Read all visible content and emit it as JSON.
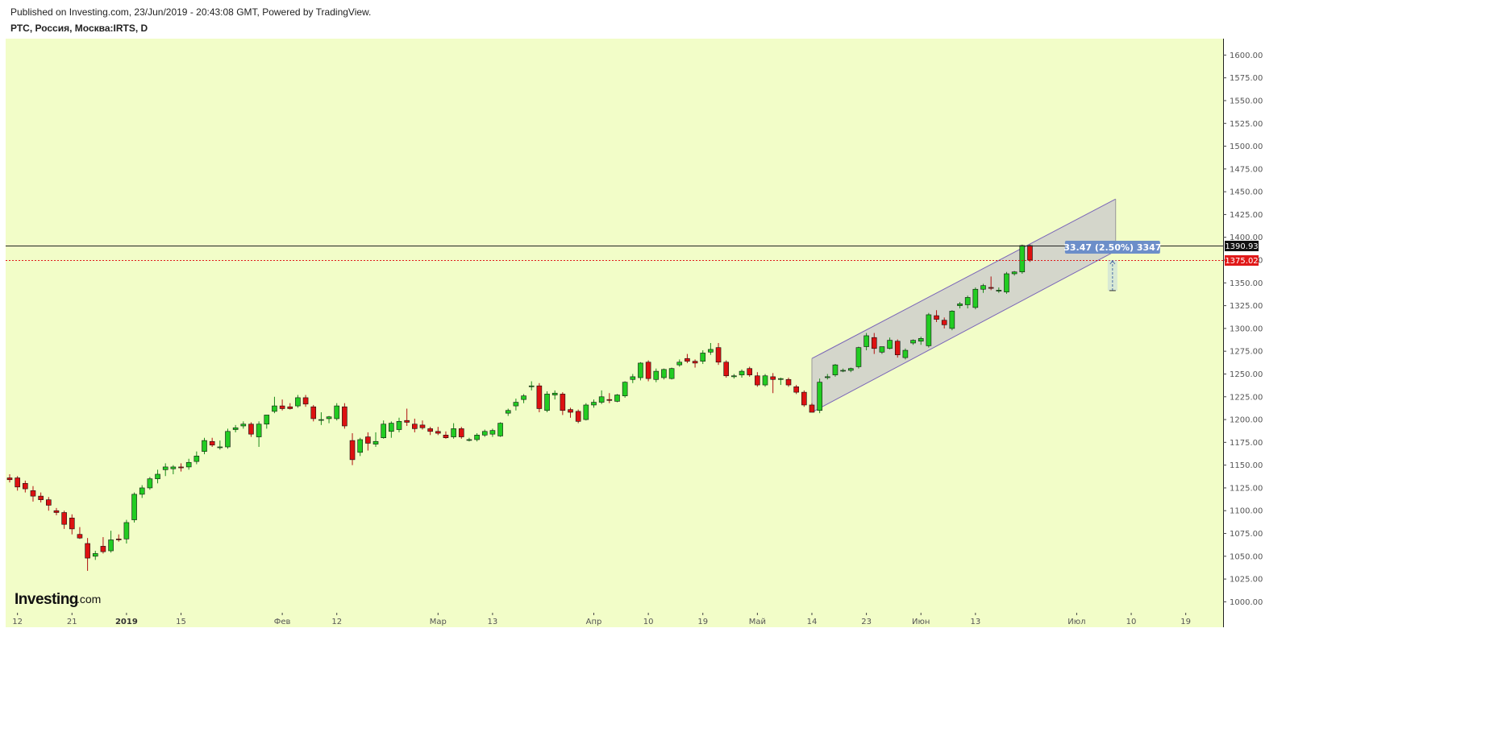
{
  "header": {
    "published": "Published on Investing.com, 23/Jun/2019 - 20:43:08 GMT, Powered by TradingView.",
    "symbol": "РТС, Россия, Москва:IRTS, D"
  },
  "logo": {
    "main": "Investing",
    "suffix": ".com"
  },
  "colors": {
    "plot_bg": "#f2fdc8",
    "up": "#22cc22",
    "down": "#dd1111",
    "channel_fill": "#cccccc",
    "channel_line": "#7a66b8",
    "measure_label": "#6c8ec9",
    "current_price_tag": "#e01919",
    "crosshair_tag": "#111111"
  },
  "chart_data": {
    "type": "candlestick",
    "title": "РТС, Россия, Москва:IRTS, D",
    "ylim": [
      988,
      1618
    ],
    "y_ticks": [
      "1600.00",
      "1575.00",
      "1550.00",
      "1525.00",
      "1500.00",
      "1475.00",
      "1450.00",
      "1425.00",
      "1400.00",
      "1375.00",
      "1350.00",
      "1325.00",
      "1300.00",
      "1275.00",
      "1250.00",
      "1225.00",
      "1200.00",
      "1175.00",
      "1150.00",
      "1125.00",
      "1100.00",
      "1075.00",
      "1050.00",
      "1025.00",
      "1000.00"
    ],
    "x_ticks": [
      {
        "label": "12",
        "bar": 1
      },
      {
        "label": "21",
        "bar": 8
      },
      {
        "label": "2019",
        "bar": 15,
        "bold": true
      },
      {
        "label": "15",
        "bar": 22
      },
      {
        "label": "Фев",
        "bar": 35
      },
      {
        "label": "12",
        "bar": 42
      },
      {
        "label": "Мар",
        "bar": 55
      },
      {
        "label": "13",
        "bar": 62
      },
      {
        "label": "Апр",
        "bar": 75
      },
      {
        "label": "10",
        "bar": 82
      },
      {
        "label": "19",
        "bar": 89
      },
      {
        "label": "Май",
        "bar": 96
      },
      {
        "label": "14",
        "bar": 103
      },
      {
        "label": "23",
        "bar": 110
      },
      {
        "label": "Июн",
        "bar": 117
      },
      {
        "label": "13",
        "bar": 124
      },
      {
        "label": "Июл",
        "bar": 137
      },
      {
        "label": "10",
        "bar": 144
      },
      {
        "label": "19",
        "bar": 151
      }
    ],
    "candles": [
      [
        1136,
        1140,
        1131,
        1134
      ],
      [
        1136,
        1138,
        1122,
        1126
      ],
      [
        1130,
        1133,
        1120,
        1124
      ],
      [
        1122,
        1127,
        1110,
        1116
      ],
      [
        1116,
        1120,
        1109,
        1112
      ],
      [
        1112,
        1115,
        1100,
        1106
      ],
      [
        1100,
        1103,
        1095,
        1098
      ],
      [
        1098,
        1100,
        1080,
        1085
      ],
      [
        1092,
        1096,
        1074,
        1080
      ],
      [
        1074,
        1082,
        1069,
        1070
      ],
      [
        1064,
        1070,
        1034,
        1048
      ],
      [
        1050,
        1056,
        1046,
        1053
      ],
      [
        1061,
        1071,
        1053,
        1055
      ],
      [
        1056,
        1078,
        1054,
        1068
      ],
      [
        1069,
        1074,
        1066,
        1068
      ],
      [
        1069,
        1090,
        1064,
        1087
      ],
      [
        1090,
        1120,
        1087,
        1118
      ],
      [
        1118,
        1128,
        1114,
        1125
      ],
      [
        1125,
        1137,
        1123,
        1135
      ],
      [
        1135,
        1145,
        1130,
        1140
      ],
      [
        1145,
        1152,
        1138,
        1148
      ],
      [
        1146,
        1150,
        1140,
        1148
      ],
      [
        1148,
        1152,
        1143,
        1147
      ],
      [
        1148,
        1157,
        1145,
        1153
      ],
      [
        1154,
        1165,
        1151,
        1160
      ],
      [
        1165,
        1180,
        1162,
        1177
      ],
      [
        1176,
        1180,
        1170,
        1172
      ],
      [
        1170,
        1177,
        1167,
        1170
      ],
      [
        1170,
        1190,
        1168,
        1187
      ],
      [
        1189,
        1194,
        1186,
        1191
      ],
      [
        1193,
        1198,
        1190,
        1195
      ],
      [
        1195,
        1197,
        1181,
        1184
      ],
      [
        1181,
        1198,
        1170,
        1195
      ],
      [
        1195,
        1205,
        1190,
        1205
      ],
      [
        1209,
        1225,
        1207,
        1215
      ],
      [
        1215,
        1222,
        1210,
        1212
      ],
      [
        1214,
        1218,
        1211,
        1212
      ],
      [
        1215,
        1227,
        1213,
        1224
      ],
      [
        1224,
        1227,
        1214,
        1217
      ],
      [
        1214,
        1216,
        1198,
        1201
      ],
      [
        1200,
        1208,
        1194,
        1200
      ],
      [
        1201,
        1204,
        1196,
        1203
      ],
      [
        1201,
        1218,
        1199,
        1215
      ],
      [
        1214,
        1218,
        1190,
        1193
      ],
      [
        1177,
        1185,
        1150,
        1156
      ],
      [
        1164,
        1180,
        1160,
        1178
      ],
      [
        1181,
        1186,
        1166,
        1174
      ],
      [
        1173,
        1186,
        1170,
        1176
      ],
      [
        1180,
        1199,
        1179,
        1195
      ],
      [
        1187,
        1198,
        1180,
        1196
      ],
      [
        1189,
        1202,
        1186,
        1198
      ],
      [
        1199,
        1212,
        1193,
        1197
      ],
      [
        1195,
        1201,
        1186,
        1190
      ],
      [
        1194,
        1199,
        1189,
        1191
      ],
      [
        1190,
        1192,
        1183,
        1187
      ],
      [
        1187,
        1192,
        1183,
        1185
      ],
      [
        1183,
        1187,
        1179,
        1180
      ],
      [
        1181,
        1196,
        1179,
        1190
      ],
      [
        1190,
        1192,
        1179,
        1181
      ],
      [
        1178,
        1180,
        1176,
        1178
      ],
      [
        1178,
        1185,
        1176,
        1183
      ],
      [
        1183,
        1189,
        1181,
        1187
      ],
      [
        1184,
        1190,
        1181,
        1188
      ],
      [
        1182,
        1197,
        1181,
        1196
      ],
      [
        1207,
        1212,
        1204,
        1210
      ],
      [
        1215,
        1223,
        1210,
        1219
      ],
      [
        1222,
        1228,
        1218,
        1226
      ],
      [
        1236,
        1242,
        1232,
        1237
      ],
      [
        1237,
        1240,
        1208,
        1212
      ],
      [
        1210,
        1231,
        1208,
        1228
      ],
      [
        1227,
        1232,
        1222,
        1229
      ],
      [
        1228,
        1230,
        1205,
        1210
      ],
      [
        1211,
        1213,
        1202,
        1208
      ],
      [
        1209,
        1211,
        1196,
        1198
      ],
      [
        1200,
        1218,
        1199,
        1216
      ],
      [
        1216,
        1222,
        1213,
        1219
      ],
      [
        1219,
        1232,
        1217,
        1225
      ],
      [
        1222,
        1229,
        1218,
        1221
      ],
      [
        1220,
        1228,
        1219,
        1227
      ],
      [
        1226,
        1242,
        1224,
        1241
      ],
      [
        1244,
        1250,
        1240,
        1247
      ],
      [
        1246,
        1263,
        1243,
        1262
      ],
      [
        1263,
        1265,
        1242,
        1245
      ],
      [
        1244,
        1256,
        1241,
        1253
      ],
      [
        1246,
        1256,
        1244,
        1255
      ],
      [
        1245,
        1257,
        1244,
        1256
      ],
      [
        1260,
        1266,
        1258,
        1263
      ],
      [
        1267,
        1272,
        1262,
        1264
      ],
      [
        1264,
        1266,
        1257,
        1262
      ],
      [
        1264,
        1276,
        1261,
        1273
      ],
      [
        1274,
        1284,
        1271,
        1277
      ],
      [
        1279,
        1284,
        1260,
        1263
      ],
      [
        1263,
        1265,
        1246,
        1248
      ],
      [
        1247,
        1250,
        1245,
        1248
      ],
      [
        1249,
        1255,
        1246,
        1253
      ],
      [
        1256,
        1258,
        1247,
        1249
      ],
      [
        1248,
        1252,
        1236,
        1238
      ],
      [
        1238,
        1250,
        1236,
        1248
      ],
      [
        1247,
        1251,
        1229,
        1244
      ],
      [
        1244,
        1246,
        1238,
        1245
      ],
      [
        1244,
        1246,
        1236,
        1238
      ],
      [
        1236,
        1238,
        1228,
        1230
      ],
      [
        1230,
        1232,
        1214,
        1216
      ],
      [
        1216,
        1218,
        1208,
        1208
      ],
      [
        1210,
        1245,
        1207,
        1241
      ],
      [
        1246,
        1250,
        1244,
        1247
      ],
      [
        1249,
        1261,
        1247,
        1260
      ],
      [
        1254,
        1256,
        1252,
        1254
      ],
      [
        1254,
        1257,
        1252,
        1256
      ],
      [
        1258,
        1280,
        1256,
        1279
      ],
      [
        1280,
        1295,
        1276,
        1292
      ],
      [
        1290,
        1295,
        1272,
        1278
      ],
      [
        1274,
        1280,
        1272,
        1280
      ],
      [
        1278,
        1290,
        1277,
        1287
      ],
      [
        1286,
        1288,
        1268,
        1271
      ],
      [
        1268,
        1278,
        1266,
        1276
      ],
      [
        1284,
        1288,
        1282,
        1287
      ],
      [
        1286,
        1291,
        1282,
        1289
      ],
      [
        1281,
        1317,
        1279,
        1315
      ],
      [
        1314,
        1320,
        1307,
        1310
      ],
      [
        1309,
        1312,
        1300,
        1304
      ],
      [
        1300,
        1320,
        1298,
        1319
      ],
      [
        1325,
        1329,
        1322,
        1327
      ],
      [
        1326,
        1336,
        1322,
        1334
      ],
      [
        1323,
        1345,
        1321,
        1343
      ],
      [
        1343,
        1349,
        1339,
        1347
      ],
      [
        1345,
        1357,
        1342,
        1344
      ],
      [
        1341,
        1345,
        1339,
        1342
      ],
      [
        1340,
        1362,
        1338,
        1360
      ],
      [
        1360,
        1363,
        1358,
        1362
      ],
      [
        1362,
        1392,
        1360,
        1391
      ],
      [
        1391,
        1392,
        1373,
        1375
      ]
    ],
    "channel": {
      "lower": {
        "from": {
          "bar": 103,
          "price": 1208
        },
        "to": {
          "bar": 142,
          "price": 1385
        }
      },
      "upper": {
        "from": {
          "bar": 103,
          "price": 1267
        },
        "to": {
          "bar": 142,
          "price": 1442
        }
      }
    },
    "horizontal_lines": [
      {
        "price": 1390.93,
        "label": "1390.93",
        "style": "solid"
      },
      {
        "price": 1375.02,
        "label": "1375.02",
        "style": "dotted"
      }
    ],
    "measure": {
      "label": "33.47 (2.50%) 3347",
      "from_price": 1341.5,
      "to_price": 1375.02,
      "bar": 141.6
    }
  }
}
